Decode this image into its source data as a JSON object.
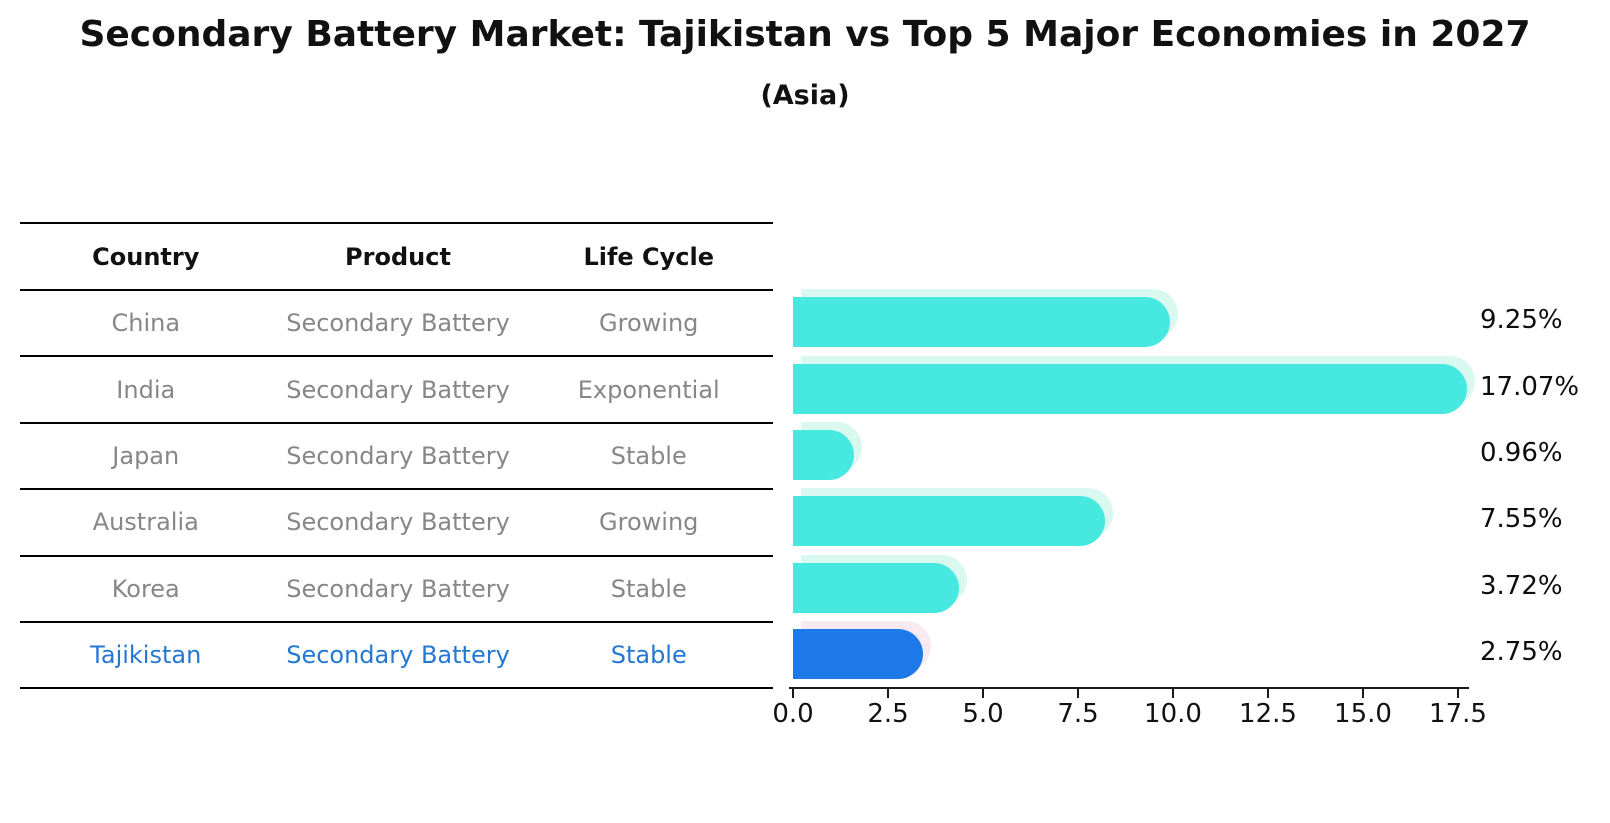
{
  "title": "Secondary Battery Market: Tajikistan vs Top 5 Major Economies in 2027",
  "subtitle": "(Asia)",
  "table": {
    "headers": [
      "Country",
      "Product",
      "Life Cycle"
    ],
    "rows": [
      {
        "country": "China",
        "product": "Secondary Battery",
        "life_cycle": "Growing",
        "highlight": false
      },
      {
        "country": "India",
        "product": "Secondary Battery",
        "life_cycle": "Exponential",
        "highlight": false
      },
      {
        "country": "Japan",
        "product": "Secondary Battery",
        "life_cycle": "Stable",
        "highlight": false
      },
      {
        "country": "Australia",
        "product": "Secondary Battery",
        "life_cycle": "Growing",
        "highlight": false
      },
      {
        "country": "Korea",
        "product": "Secondary Battery",
        "life_cycle": "Stable",
        "highlight": false
      },
      {
        "country": "Tajikistan",
        "product": "Secondary Battery",
        "life_cycle": "Stable",
        "highlight": true
      }
    ]
  },
  "chart_data": {
    "type": "bar",
    "orientation": "horizontal",
    "title": "Secondary Battery Market: Tajikistan vs Top 5 Major Economies in 2027",
    "subtitle": "(Asia)",
    "categories": [
      "China",
      "India",
      "Japan",
      "Australia",
      "Korea",
      "Tajikistan"
    ],
    "values": [
      9.25,
      17.07,
      0.96,
      7.55,
      3.72,
      2.75
    ],
    "value_labels": [
      "9.25%",
      "17.07%",
      "0.96%",
      "7.55%",
      "3.72%",
      "2.75%"
    ],
    "x_ticks": [
      "0.0",
      "2.5",
      "5.0",
      "7.5",
      "10.0",
      "12.5",
      "15.0",
      "17.5"
    ],
    "x_tick_values": [
      0,
      2.5,
      5,
      7.5,
      10,
      12.5,
      15,
      17.5
    ],
    "xlim": [
      0,
      17.5
    ],
    "grid": false,
    "legend": false,
    "bar_color": "#46e8e0",
    "bar_shadow_color": "#d9f9f0",
    "highlight_index": 5,
    "highlight_bar_color": "#1e79e9",
    "highlight_shadow_color": "#f8eaf0",
    "highlight_bar_style": "dotted-edge"
  }
}
